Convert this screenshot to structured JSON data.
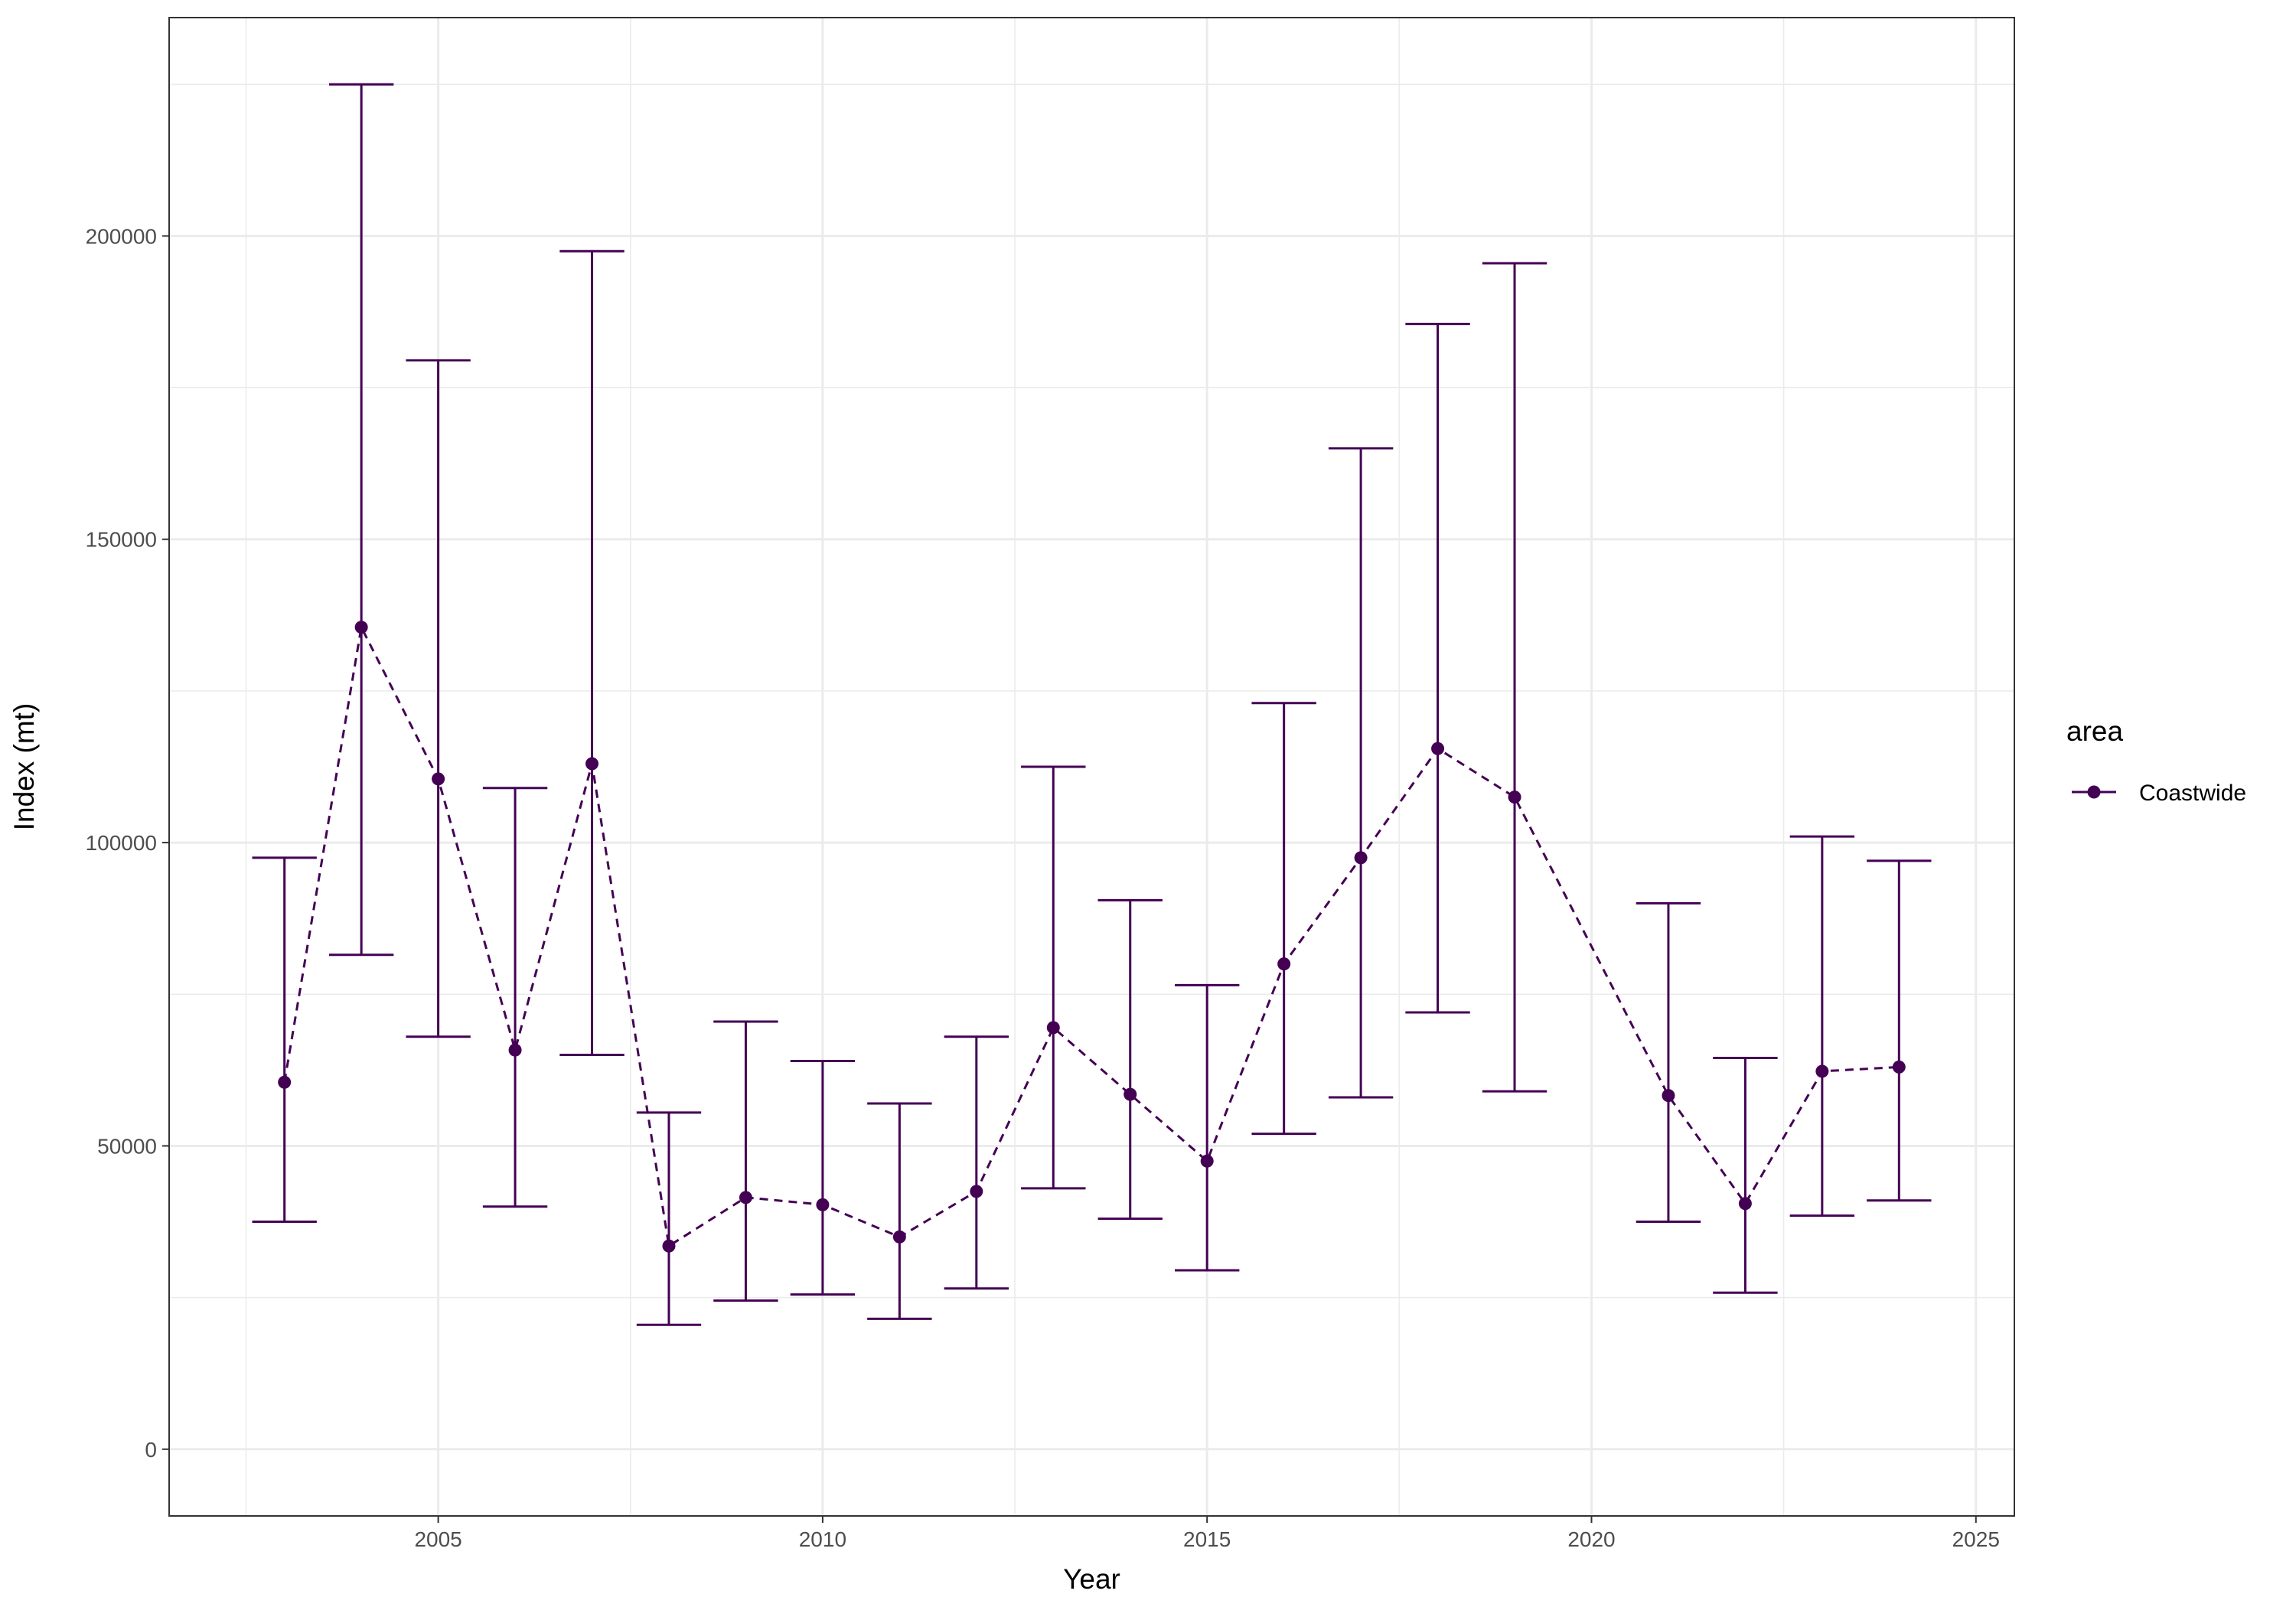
{
  "chart_data": {
    "type": "line",
    "xlabel": "Year",
    "ylabel": "Index (mt)",
    "xlim": [
      2001.5,
      2025.5
    ],
    "ylim": [
      -11000,
      236000
    ],
    "x_ticks": [
      2005,
      2010,
      2015,
      2020,
      2025
    ],
    "x_minor": [
      2002.5,
      2007.5,
      2012.5,
      2017.5,
      2022.5
    ],
    "y_ticks": [
      0,
      50000,
      100000,
      150000,
      200000
    ],
    "y_minor": [
      25000,
      75000,
      125000,
      175000,
      225000
    ],
    "grid": true,
    "legend": {
      "title": "area",
      "position": "right"
    },
    "series": [
      {
        "name": "Coastwide",
        "color": "#440154",
        "line_style": "dashed",
        "points": [
          {
            "x": 2003,
            "y": 60500,
            "lower": 37500,
            "upper": 97500
          },
          {
            "x": 2004,
            "y": 135500,
            "lower": 81500,
            "upper": 225000
          },
          {
            "x": 2005,
            "y": 110500,
            "lower": 68000,
            "upper": 179500
          },
          {
            "x": 2006,
            "y": 65800,
            "lower": 40000,
            "upper": 109000
          },
          {
            "x": 2007,
            "y": 113000,
            "lower": 65000,
            "upper": 197500
          },
          {
            "x": 2008,
            "y": 33500,
            "lower": 20500,
            "upper": 55500
          },
          {
            "x": 2009,
            "y": 41500,
            "lower": 24500,
            "upper": 70500
          },
          {
            "x": 2010,
            "y": 40300,
            "lower": 25500,
            "upper": 64000
          },
          {
            "x": 2011,
            "y": 35000,
            "lower": 21500,
            "upper": 57000
          },
          {
            "x": 2012,
            "y": 42500,
            "lower": 26500,
            "upper": 68000
          },
          {
            "x": 2013,
            "y": 69500,
            "lower": 43000,
            "upper": 112500
          },
          {
            "x": 2014,
            "y": 58500,
            "lower": 38000,
            "upper": 90500
          },
          {
            "x": 2015,
            "y": 47500,
            "lower": 29500,
            "upper": 76500
          },
          {
            "x": 2016,
            "y": 80000,
            "lower": 52000,
            "upper": 123000
          },
          {
            "x": 2017,
            "y": 97500,
            "lower": 58000,
            "upper": 165000
          },
          {
            "x": 2018,
            "y": 115500,
            "lower": 72000,
            "upper": 185500
          },
          {
            "x": 2019,
            "y": 107500,
            "lower": 59000,
            "upper": 195500
          },
          {
            "x": 2021,
            "y": 58300,
            "lower": 37500,
            "upper": 90000
          },
          {
            "x": 2022,
            "y": 40500,
            "lower": 25800,
            "upper": 64500
          },
          {
            "x": 2023,
            "y": 62300,
            "lower": 38500,
            "upper": 101000
          },
          {
            "x": 2024,
            "y": 63000,
            "lower": 41000,
            "upper": 97000
          }
        ]
      }
    ]
  }
}
